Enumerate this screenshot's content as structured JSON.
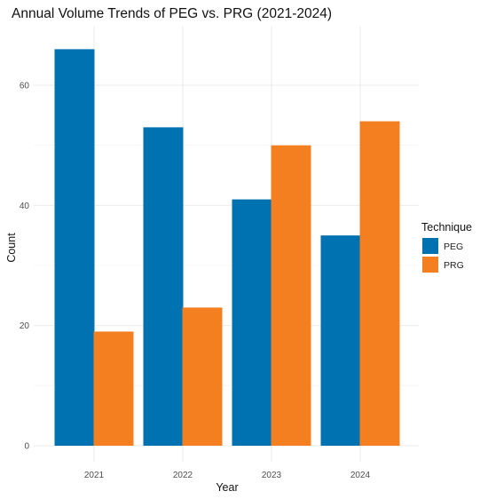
{
  "chart_data": {
    "type": "bar",
    "title": "Annual Volume Trends of PEG vs. PRG (2021-2024)",
    "xlabel": "Year",
    "ylabel": "Count",
    "categories": [
      "2021",
      "2022",
      "2023",
      "2024"
    ],
    "series": [
      {
        "name": "PEG",
        "color": "#0072B2",
        "values": [
          66,
          53,
          41,
          35
        ]
      },
      {
        "name": "PRG",
        "color": "#F47F20",
        "values": [
          19,
          23,
          50,
          54
        ]
      }
    ],
    "ylim": [
      0,
      70
    ],
    "yticks": [
      0,
      20,
      40,
      60
    ],
    "legend": {
      "title": "Technique",
      "position": "right"
    },
    "grid": true
  }
}
